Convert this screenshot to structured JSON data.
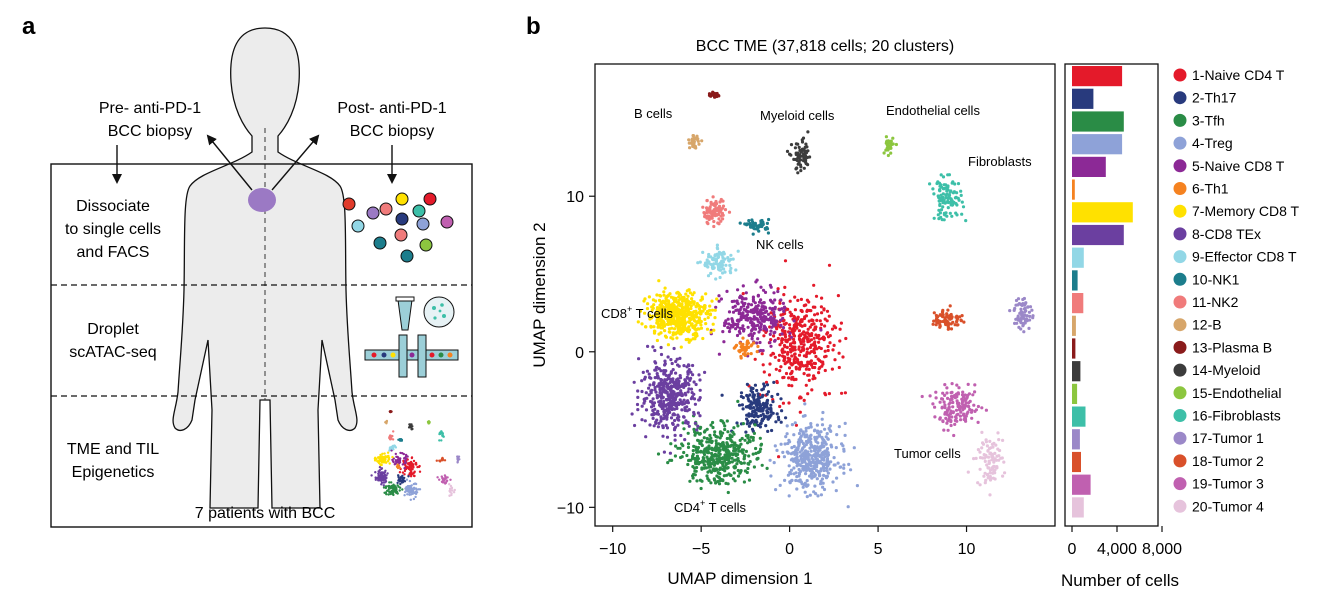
{
  "panel_a": {
    "label": "a",
    "pre": [
      "Pre- anti-PD-1",
      "BCC biopsy"
    ],
    "post": [
      "Post- anti-PD-1",
      "BCC biopsy"
    ],
    "step1": [
      "Dissociate",
      "to single cells",
      "and FACS"
    ],
    "step2": [
      "Droplet",
      "scATAC-seq"
    ],
    "step3": [
      "TME and TIL",
      "Epigenetics"
    ],
    "footer": "7 patients with BCC"
  },
  "panel_b": {
    "label": "b",
    "title": "BCC TME (37,818 cells; 20 clusters)",
    "annotations": {
      "b_cells": "B cells",
      "myeloid": "Myeloid cells",
      "endothelial": "Endothelial cells",
      "fibroblasts": "Fibroblasts",
      "nk": "NK cells",
      "cd8_main": "CD8",
      "cd8_sup": "+",
      "cd8_rest": " T cells",
      "cd4_main": "CD4",
      "cd4_sup": "+",
      "cd4_rest": " T cells",
      "tumor": "Tumor cells"
    }
  },
  "chart_data": [
    {
      "type": "scatter",
      "title": "BCC TME (37,818 cells; 20 clusters)",
      "xlabel": "UMAP dimension 1",
      "ylabel": "UMAP dimension 2",
      "xlim": [
        -11,
        15
      ],
      "ylim": [
        -11.2,
        18.5
      ],
      "xticks": [
        -10,
        -5,
        0,
        5,
        10
      ],
      "yticks": [
        -10,
        0,
        10
      ],
      "series": [
        {
          "name": "1-Naive CD4 T",
          "color": "#e41a2a",
          "center": [
            0.6,
            0.5
          ]
        },
        {
          "name": "2-Th17",
          "color": "#283a7d",
          "center": [
            -1.7,
            -3.6
          ]
        },
        {
          "name": "3-Tfh",
          "color": "#2a8c46",
          "center": [
            -4.0,
            -6.6
          ]
        },
        {
          "name": "4-Treg",
          "color": "#8ea2d8",
          "center": [
            1.2,
            -6.8
          ]
        },
        {
          "name": "5-Naive CD8 T",
          "color": "#8c2996",
          "center": [
            -2.0,
            2.2
          ]
        },
        {
          "name": "6-Th1",
          "color": "#f58220",
          "center": [
            -2.5,
            0.2
          ]
        },
        {
          "name": "7-Memory CD8 T",
          "color": "#ffe100",
          "center": [
            -6.3,
            2.4
          ]
        },
        {
          "name": "8-CD8 TEx",
          "color": "#6b3fa0",
          "center": [
            -6.8,
            -2.8
          ]
        },
        {
          "name": "9-Effector CD8 T",
          "color": "#92d7e6",
          "center": [
            -4.0,
            5.7
          ]
        },
        {
          "name": "10-NK1",
          "color": "#1c7d8c",
          "center": [
            -1.8,
            8.1
          ]
        },
        {
          "name": "11-NK2",
          "color": "#f07b7b",
          "center": [
            -4.3,
            9.0
          ]
        },
        {
          "name": "12-B",
          "color": "#d7a66a",
          "center": [
            -5.4,
            13.5
          ]
        },
        {
          "name": "13-Plasma B",
          "color": "#8a1b1b",
          "center": [
            -4.3,
            16.5
          ]
        },
        {
          "name": "14-Myeloid",
          "color": "#3c3c3c",
          "center": [
            0.7,
            12.5
          ]
        },
        {
          "name": "15-Endothelial",
          "color": "#8cc63f",
          "center": [
            5.6,
            13.3
          ]
        },
        {
          "name": "16-Fibroblasts",
          "color": "#3dbfa8",
          "center": [
            8.9,
            9.8
          ]
        },
        {
          "name": "17-Tumor 1",
          "color": "#9b88c8",
          "center": [
            13.2,
            2.5
          ]
        },
        {
          "name": "18-Tumor 2",
          "color": "#d9502a",
          "center": [
            8.9,
            2.1
          ]
        },
        {
          "name": "19-Tumor 3",
          "color": "#c060b0",
          "center": [
            9.5,
            -3.6
          ]
        },
        {
          "name": "20-Tumor 4",
          "color": "#e6c3dc",
          "center": [
            11.3,
            -7.0
          ]
        }
      ]
    },
    {
      "type": "bar",
      "orientation": "horizontal",
      "xlabel": "Number of cells",
      "xlim": [
        0,
        8000
      ],
      "xticks": [
        0,
        4000,
        8000
      ],
      "xtick_labels": [
        "0",
        "4,000",
        "8,000"
      ],
      "categories": [
        "1-Naive CD4 T",
        "2-Th17",
        "3-Tfh",
        "4-Treg",
        "5-Naive CD8 T",
        "6-Th1",
        "7-Memory CD8 T",
        "8-CD8 TEx",
        "9-Effector CD8 T",
        "10-NK1",
        "11-NK2",
        "12-B",
        "13-Plasma B",
        "14-Myeloid",
        "15-Endothelial",
        "16-Fibroblasts",
        "17-Tumor 1",
        "18-Tumor 2",
        "19-Tumor 3",
        "20-Tumor 4"
      ],
      "values": [
        4450,
        1900,
        4600,
        4450,
        3000,
        250,
        5400,
        4600,
        1050,
        500,
        1000,
        350,
        300,
        750,
        450,
        1200,
        700,
        800,
        1650,
        1050
      ],
      "colors": [
        "#e41a2a",
        "#283a7d",
        "#2a8c46",
        "#8ea2d8",
        "#8c2996",
        "#f58220",
        "#ffe100",
        "#6b3fa0",
        "#92d7e6",
        "#1c7d8c",
        "#f07b7b",
        "#d7a66a",
        "#8a1b1b",
        "#3c3c3c",
        "#8cc63f",
        "#3dbfa8",
        "#9b88c8",
        "#d9502a",
        "#c060b0",
        "#e6c3dc"
      ],
      "legend": "right"
    }
  ]
}
